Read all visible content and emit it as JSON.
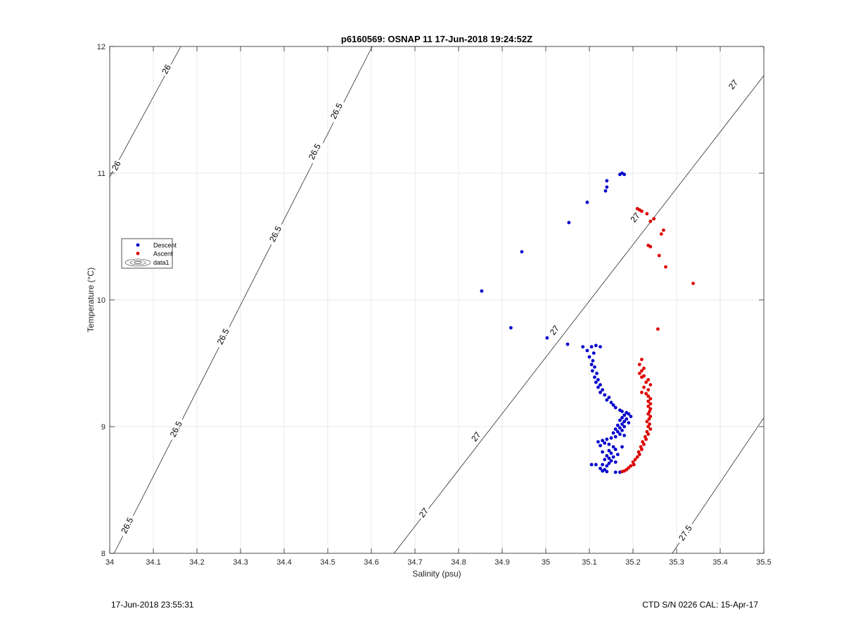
{
  "footer": {
    "left": "17-Jun-2018 23:55:31",
    "right": "CTD S/N 0226  CAL: 15-Apr-17"
  },
  "chart_data": {
    "type": "scatter",
    "title": "p6160569: OSNAP 11 17-Jun-2018 19:24:52Z",
    "xlabel": "Salinity (psu)",
    "ylabel": "Temperature (°C)",
    "xlim": [
      34,
      35.5
    ],
    "ylim": [
      8,
      12
    ],
    "xticks": [
      "34",
      "34.1",
      "34.2",
      "34.3",
      "34.4",
      "34.5",
      "34.6",
      "34.7",
      "34.8",
      "34.9",
      "35",
      "35.1",
      "35.2",
      "35.3",
      "35.4",
      "35.5"
    ],
    "yticks": [
      "8",
      "9",
      "10",
      "11",
      "12"
    ],
    "grid": true,
    "legend": {
      "placement": "left-middle",
      "entries": [
        "Descent",
        "Ascent",
        "data1"
      ]
    },
    "series": [
      {
        "name": "Descent",
        "color": "#0000cc",
        "points": [
          [
            35.175,
            11.0
          ],
          [
            35.18,
            10.99
          ],
          [
            35.17,
            10.99
          ],
          [
            35.14,
            10.94
          ],
          [
            35.14,
            10.89
          ],
          [
            35.137,
            10.86
          ],
          [
            35.095,
            10.77
          ],
          [
            35.053,
            10.61
          ],
          [
            34.945,
            10.38
          ],
          [
            34.853,
            10.07
          ],
          [
            34.92,
            9.78
          ],
          [
            35.003,
            9.7
          ],
          [
            35.05,
            9.65
          ],
          [
            35.085,
            9.63
          ],
          [
            35.105,
            9.63
          ],
          [
            35.115,
            9.64
          ],
          [
            35.125,
            9.63
          ],
          [
            35.095,
            9.6
          ],
          [
            35.11,
            9.58
          ],
          [
            35.1,
            9.55
          ],
          [
            35.108,
            9.52
          ],
          [
            35.105,
            9.49
          ],
          [
            35.112,
            9.47
          ],
          [
            35.107,
            9.44
          ],
          [
            35.117,
            9.42
          ],
          [
            35.112,
            9.39
          ],
          [
            35.12,
            9.37
          ],
          [
            35.115,
            9.35
          ],
          [
            35.125,
            9.33
          ],
          [
            35.12,
            9.31
          ],
          [
            35.13,
            9.29
          ],
          [
            35.125,
            9.27
          ],
          [
            35.135,
            9.25
          ],
          [
            35.145,
            9.23
          ],
          [
            35.14,
            9.21
          ],
          [
            35.15,
            9.19
          ],
          [
            35.155,
            9.17
          ],
          [
            35.16,
            9.15
          ],
          [
            35.17,
            9.13
          ],
          [
            35.175,
            9.12
          ],
          [
            35.185,
            9.11
          ],
          [
            35.19,
            9.1
          ],
          [
            35.18,
            9.09
          ],
          [
            35.195,
            9.08
          ],
          [
            35.175,
            9.07
          ],
          [
            35.185,
            9.06
          ],
          [
            35.17,
            9.05
          ],
          [
            35.18,
            9.04
          ],
          [
            35.19,
            9.03
          ],
          [
            35.175,
            9.02
          ],
          [
            35.165,
            9.01
          ],
          [
            35.18,
            9.0
          ],
          [
            35.17,
            8.99
          ],
          [
            35.16,
            8.98
          ],
          [
            35.175,
            8.97
          ],
          [
            35.165,
            8.96
          ],
          [
            35.155,
            8.95
          ],
          [
            35.17,
            8.94
          ],
          [
            35.18,
            8.93
          ],
          [
            35.16,
            8.92
          ],
          [
            35.15,
            8.91
          ],
          [
            35.14,
            8.9
          ],
          [
            35.13,
            8.89
          ],
          [
            35.12,
            8.88
          ],
          [
            35.135,
            8.87
          ],
          [
            35.145,
            8.86
          ],
          [
            35.125,
            8.85
          ],
          [
            35.155,
            8.84
          ],
          [
            35.175,
            8.84
          ],
          [
            35.16,
            8.82
          ],
          [
            35.145,
            8.81
          ],
          [
            35.13,
            8.8
          ],
          [
            35.15,
            8.79
          ],
          [
            35.165,
            8.78
          ],
          [
            35.14,
            8.77
          ],
          [
            35.155,
            8.76
          ],
          [
            35.145,
            8.75
          ],
          [
            35.135,
            8.74
          ],
          [
            35.15,
            8.73
          ],
          [
            35.16,
            8.72
          ],
          [
            35.145,
            8.71
          ],
          [
            35.13,
            8.7
          ],
          [
            35.115,
            8.7
          ],
          [
            35.105,
            8.7
          ],
          [
            35.14,
            8.69
          ],
          [
            35.125,
            8.67
          ],
          [
            35.135,
            8.66
          ],
          [
            35.13,
            8.65
          ],
          [
            35.14,
            8.645
          ],
          [
            35.16,
            8.64
          ],
          [
            35.17,
            8.64
          ]
        ]
      },
      {
        "name": "Ascent",
        "color": "#dd0000",
        "points": [
          [
            35.21,
            10.72
          ],
          [
            35.215,
            10.71
          ],
          [
            35.22,
            10.7
          ],
          [
            35.232,
            10.68
          ],
          [
            35.248,
            10.64
          ],
          [
            35.24,
            10.62
          ],
          [
            35.27,
            10.55
          ],
          [
            35.265,
            10.52
          ],
          [
            35.235,
            10.43
          ],
          [
            35.24,
            10.42
          ],
          [
            35.26,
            10.35
          ],
          [
            35.275,
            10.26
          ],
          [
            35.338,
            10.13
          ],
          [
            35.257,
            9.77
          ],
          [
            35.22,
            9.53
          ],
          [
            35.215,
            9.49
          ],
          [
            35.225,
            9.46
          ],
          [
            35.22,
            9.44
          ],
          [
            35.215,
            9.42
          ],
          [
            35.225,
            9.4
          ],
          [
            35.22,
            9.39
          ],
          [
            35.235,
            9.37
          ],
          [
            35.23,
            9.35
          ],
          [
            35.24,
            9.33
          ],
          [
            35.225,
            9.31
          ],
          [
            35.235,
            9.29
          ],
          [
            35.22,
            9.27
          ],
          [
            35.23,
            9.26
          ],
          [
            35.235,
            9.24
          ],
          [
            35.24,
            9.22
          ],
          [
            35.235,
            9.2
          ],
          [
            35.24,
            9.18
          ],
          [
            35.235,
            9.16
          ],
          [
            35.24,
            9.14
          ],
          [
            35.238,
            9.12
          ],
          [
            35.235,
            9.1
          ],
          [
            35.24,
            9.08
          ],
          [
            35.237,
            9.06
          ],
          [
            35.232,
            9.04
          ],
          [
            35.238,
            9.02
          ],
          [
            35.235,
            9.0
          ],
          [
            35.24,
            8.98
          ],
          [
            35.232,
            8.96
          ],
          [
            35.235,
            8.94
          ],
          [
            35.228,
            8.92
          ],
          [
            35.23,
            8.9
          ],
          [
            35.222,
            8.88
          ],
          [
            35.225,
            8.86
          ],
          [
            35.218,
            8.84
          ],
          [
            35.22,
            8.82
          ],
          [
            35.213,
            8.8
          ],
          [
            35.215,
            8.78
          ],
          [
            35.21,
            8.76
          ],
          [
            35.205,
            8.74
          ],
          [
            35.2,
            8.72
          ],
          [
            35.202,
            8.7
          ],
          [
            35.195,
            8.69
          ],
          [
            35.19,
            8.675
          ],
          [
            35.185,
            8.66
          ],
          [
            35.18,
            8.65
          ],
          [
            35.175,
            8.645
          ]
        ]
      }
    ],
    "contours": [
      {
        "label": "26",
        "points": [
          [
            34.0,
            10.97
          ],
          [
            34.163,
            12.0
          ]
        ],
        "label_at": [
          [
            34.015,
            11.06
          ],
          [
            34.13,
            11.82
          ]
        ]
      },
      {
        "label": "26.5",
        "points": [
          [
            34.01,
            8.0
          ],
          [
            34.602,
            12.0
          ]
        ],
        "label_at": [
          [
            34.04,
            8.22
          ],
          [
            34.152,
            8.98
          ],
          [
            34.26,
            9.71
          ],
          [
            34.38,
            10.52
          ],
          [
            34.47,
            11.17
          ],
          [
            34.52,
            11.49
          ]
        ]
      },
      {
        "label": "27",
        "points": [
          [
            34.652,
            8.0
          ],
          [
            35.5,
            11.77
          ]
        ],
        "label_at": [
          [
            34.72,
            8.32
          ],
          [
            34.84,
            8.92
          ],
          [
            35.02,
            9.76
          ],
          [
            35.205,
            10.65
          ],
          [
            35.43,
            11.7
          ]
        ]
      },
      {
        "label": "27.5",
        "points": [
          [
            35.29,
            8.0
          ],
          [
            35.5,
            9.07
          ]
        ],
        "label_at": [
          [
            35.32,
            8.16
          ]
        ]
      }
    ]
  }
}
